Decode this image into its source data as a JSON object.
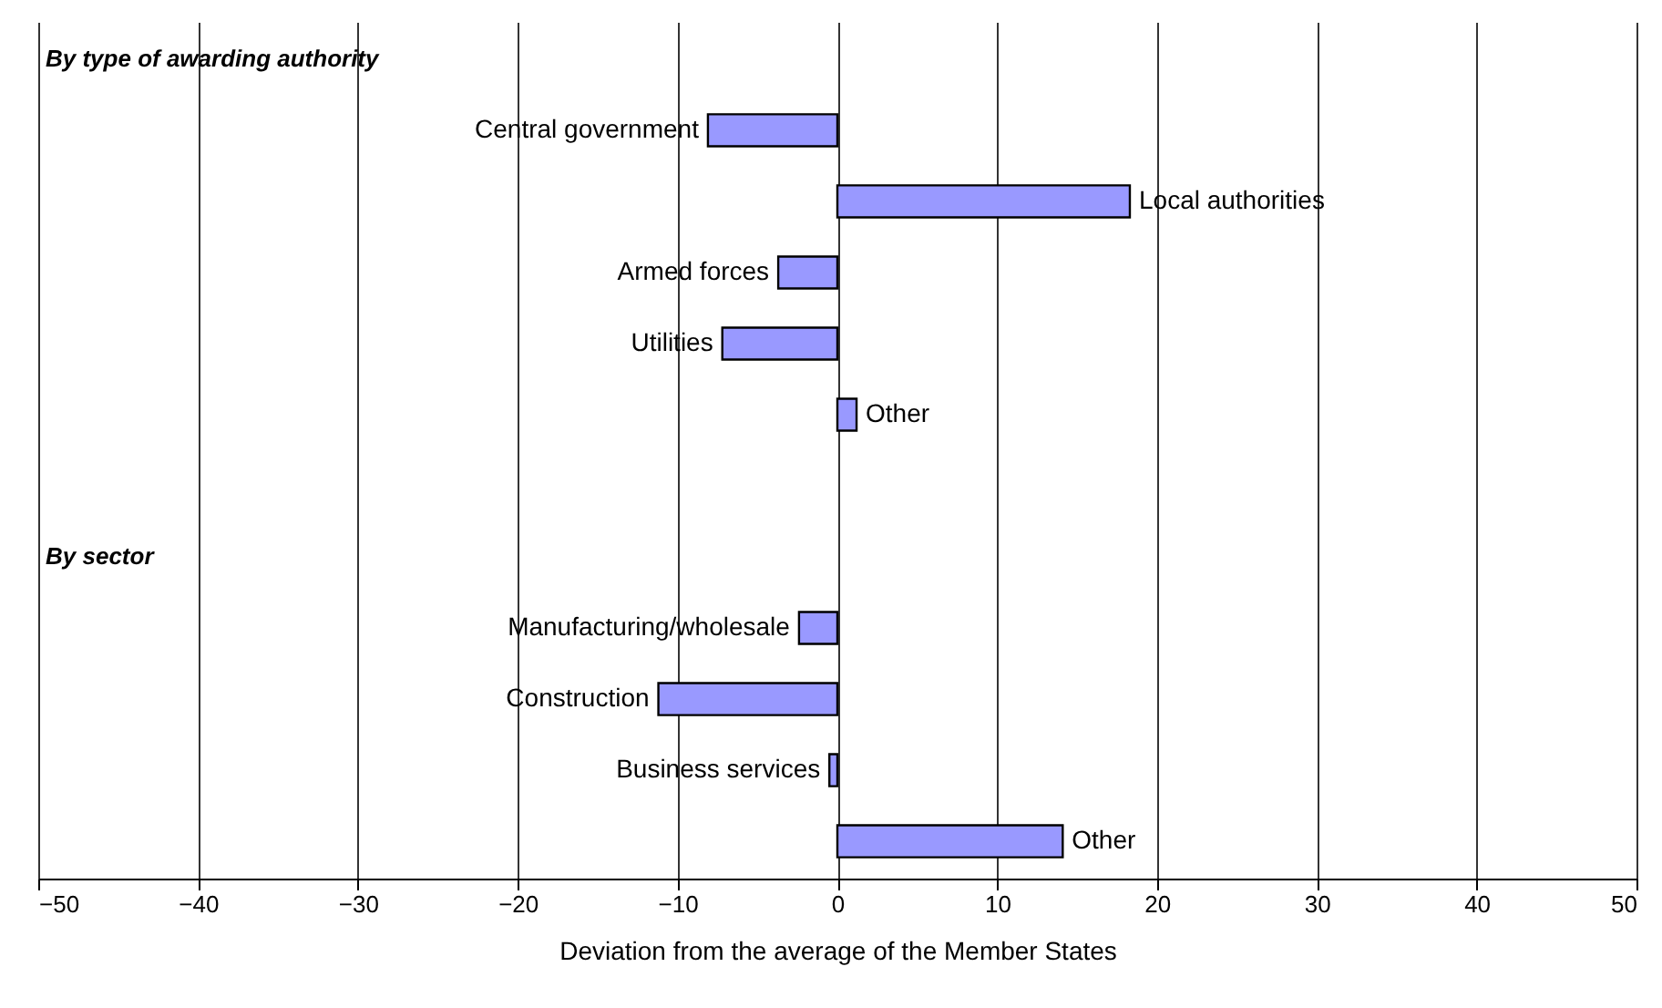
{
  "chart_data": {
    "type": "bar",
    "orientation": "horizontal",
    "categories": [
      null,
      "Central government",
      "Local authorities",
      "Armed forces",
      "Utilities",
      "Other",
      null,
      null,
      "Manufacturing/wholesale",
      "Construction",
      "Business services",
      "Other"
    ],
    "values": [
      null,
      -8.1,
      18.3,
      -3.7,
      -7.2,
      1.2,
      null,
      null,
      -2.4,
      -11.2,
      -0.5,
      14.1
    ],
    "color": "#9999ff",
    "xlim": [
      -50,
      50
    ],
    "xticks": [
      -50,
      -40,
      -30,
      -20,
      -10,
      0,
      10,
      20,
      30,
      40,
      50
    ],
    "xlabel": "Deviation from the average of the Member States",
    "annotations": [
      "By type of awarding authority",
      "By sector"
    ],
    "grid": "x",
    "tick_labels": "x"
  }
}
